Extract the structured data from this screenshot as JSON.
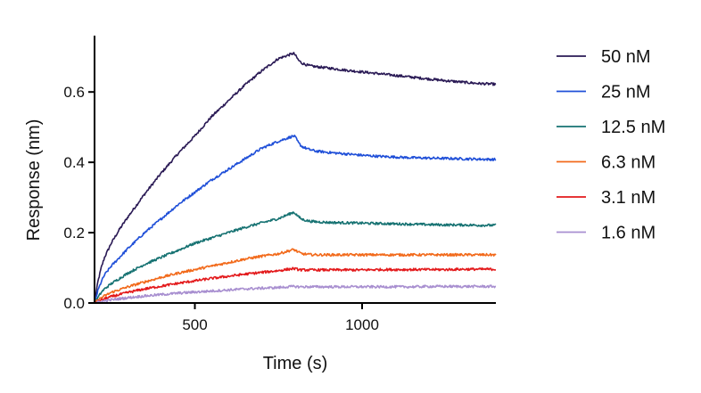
{
  "chart_data": {
    "type": "line",
    "xlabel": "Time (s)",
    "ylabel": "Response (nm)",
    "xlim": [
      200,
      1400
    ],
    "ylim": [
      0,
      0.75
    ],
    "xticks": [
      500,
      1000
    ],
    "xtick_labels": [
      "500",
      "1000"
    ],
    "yticks": [
      0,
      0.2,
      0.4,
      0.6
    ],
    "ytick_labels": [
      "0.0",
      "0.2",
      "0.4",
      "0.6"
    ],
    "association_end": 800,
    "legend_position": "right",
    "grid": false,
    "series": [
      {
        "name": "50 nM",
        "color": "#2a1a55",
        "x": [
          200,
          210,
          220,
          230,
          250,
          275,
          300,
          350,
          400,
          450,
          500,
          550,
          600,
          650,
          700,
          750,
          795,
          800,
          810,
          820,
          840,
          860,
          880,
          900,
          950,
          1000,
          1050,
          1100,
          1150,
          1200,
          1250,
          1300,
          1350,
          1400
        ],
        "y": [
          0,
          0.06,
          0.1,
          0.13,
          0.17,
          0.21,
          0.245,
          0.31,
          0.37,
          0.425,
          0.475,
          0.53,
          0.575,
          0.62,
          0.66,
          0.695,
          0.71,
          0.705,
          0.69,
          0.682,
          0.675,
          0.672,
          0.67,
          0.668,
          0.662,
          0.657,
          0.652,
          0.647,
          0.642,
          0.637,
          0.632,
          0.628,
          0.624,
          0.622
        ]
      },
      {
        "name": "25 nM",
        "color": "#1f4fd8",
        "x": [
          200,
          210,
          220,
          230,
          250,
          275,
          300,
          350,
          400,
          450,
          500,
          550,
          600,
          650,
          700,
          750,
          795,
          800,
          810,
          820,
          840,
          860,
          880,
          900,
          950,
          1000,
          1050,
          1100,
          1150,
          1200,
          1250,
          1300,
          1350,
          1400
        ],
        "y": [
          0,
          0.035,
          0.06,
          0.08,
          0.105,
          0.13,
          0.155,
          0.2,
          0.24,
          0.28,
          0.315,
          0.35,
          0.38,
          0.41,
          0.44,
          0.46,
          0.475,
          0.472,
          0.455,
          0.445,
          0.437,
          0.432,
          0.43,
          0.428,
          0.424,
          0.42,
          0.417,
          0.415,
          0.413,
          0.412,
          0.411,
          0.41,
          0.409,
          0.408
        ]
      },
      {
        "name": "12.5 nM",
        "color": "#167272",
        "x": [
          200,
          210,
          220,
          230,
          250,
          275,
          300,
          350,
          400,
          450,
          500,
          550,
          600,
          650,
          700,
          750,
          795,
          800,
          810,
          820,
          840,
          860,
          880,
          900,
          950,
          1000,
          1050,
          1100,
          1150,
          1200,
          1250,
          1300,
          1350,
          1400
        ],
        "y": [
          0,
          0.015,
          0.03,
          0.04,
          0.055,
          0.07,
          0.085,
          0.11,
          0.13,
          0.15,
          0.17,
          0.185,
          0.2,
          0.215,
          0.228,
          0.24,
          0.258,
          0.255,
          0.245,
          0.238,
          0.233,
          0.231,
          0.23,
          0.229,
          0.228,
          0.227,
          0.226,
          0.225,
          0.224,
          0.223,
          0.222,
          0.222,
          0.221,
          0.221
        ]
      },
      {
        "name": "6.3 nM",
        "color": "#f26a1b",
        "x": [
          200,
          210,
          220,
          230,
          250,
          275,
          300,
          350,
          400,
          450,
          500,
          550,
          600,
          650,
          700,
          750,
          795,
          800,
          810,
          820,
          840,
          860,
          880,
          900,
          950,
          1000,
          1050,
          1100,
          1150,
          1200,
          1250,
          1300,
          1350,
          1400
        ],
        "y": [
          0,
          0.008,
          0.015,
          0.02,
          0.03,
          0.038,
          0.046,
          0.06,
          0.073,
          0.085,
          0.095,
          0.105,
          0.115,
          0.125,
          0.133,
          0.14,
          0.152,
          0.15,
          0.144,
          0.14,
          0.138,
          0.137,
          0.137,
          0.137,
          0.137,
          0.137,
          0.137,
          0.137,
          0.137,
          0.137,
          0.137,
          0.137,
          0.137,
          0.137
        ]
      },
      {
        "name": "3.1 nM",
        "color": "#e31a1c",
        "x": [
          200,
          210,
          220,
          230,
          250,
          275,
          300,
          350,
          400,
          450,
          500,
          550,
          600,
          650,
          700,
          750,
          795,
          800,
          810,
          820,
          840,
          860,
          880,
          900,
          950,
          1000,
          1050,
          1100,
          1150,
          1200,
          1250,
          1300,
          1350,
          1400
        ],
        "y": [
          0,
          0.004,
          0.008,
          0.012,
          0.018,
          0.024,
          0.03,
          0.04,
          0.048,
          0.056,
          0.063,
          0.07,
          0.076,
          0.082,
          0.087,
          0.092,
          0.098,
          0.097,
          0.095,
          0.094,
          0.094,
          0.094,
          0.094,
          0.094,
          0.094,
          0.094,
          0.095,
          0.095,
          0.095,
          0.095,
          0.095,
          0.096,
          0.096,
          0.096
        ]
      },
      {
        "name": "1.6 nM",
        "color": "#a88fd0",
        "x": [
          200,
          210,
          220,
          230,
          250,
          275,
          300,
          350,
          400,
          450,
          500,
          550,
          600,
          650,
          700,
          750,
          795,
          800,
          810,
          820,
          840,
          860,
          880,
          900,
          950,
          1000,
          1050,
          1100,
          1150,
          1200,
          1250,
          1300,
          1350,
          1400
        ],
        "y": [
          0,
          0.002,
          0.004,
          0.006,
          0.009,
          0.012,
          0.015,
          0.02,
          0.024,
          0.028,
          0.031,
          0.034,
          0.037,
          0.04,
          0.042,
          0.044,
          0.047,
          0.047,
          0.046,
          0.046,
          0.046,
          0.046,
          0.046,
          0.046,
          0.046,
          0.046,
          0.046,
          0.046,
          0.046,
          0.047,
          0.047,
          0.047,
          0.047,
          0.047
        ]
      }
    ]
  }
}
